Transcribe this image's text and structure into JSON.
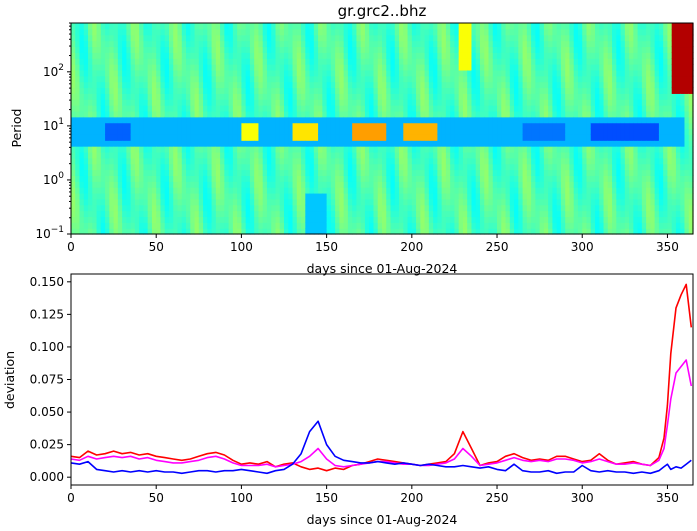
{
  "chart_data": [
    {
      "type": "heatmap",
      "title": "gr.grc2..bhz",
      "xlabel": "days since 01-Aug-2024",
      "ylabel": "Period",
      "xlim": [
        0,
        365
      ],
      "ylim": [
        0.1,
        800
      ],
      "yscale": "log",
      "xticks": [
        "0",
        "50",
        "100",
        "150",
        "200",
        "250",
        "300",
        "350"
      ],
      "yticks": [
        {
          "base": "10",
          "exp": "−1",
          "value": 0.1
        },
        {
          "base": "10",
          "exp": "0",
          "value": 1
        },
        {
          "base": "10",
          "exp": "1",
          "value": 10
        },
        {
          "base": "10",
          "exp": "2",
          "value": 100
        }
      ],
      "colormap": "jet",
      "background_level": 0.45,
      "features": [
        {
          "x": [
            0,
            360
          ],
          "period": [
            4,
            14
          ],
          "level": 0.3,
          "note": "blue band near 10 s period"
        },
        {
          "x": [
            20,
            35
          ],
          "period": [
            5,
            12
          ],
          "level": 0.22
        },
        {
          "x": [
            265,
            290
          ],
          "period": [
            5,
            12
          ],
          "level": 0.24
        },
        {
          "x": [
            305,
            345
          ],
          "period": [
            5,
            12
          ],
          "level": 0.2
        },
        {
          "x": [
            100,
            110
          ],
          "period": [
            6,
            12
          ],
          "level": 0.62
        },
        {
          "x": [
            130,
            145
          ],
          "period": [
            6,
            12
          ],
          "level": 0.65
        },
        {
          "x": [
            165,
            185
          ],
          "period": [
            6,
            12
          ],
          "level": 0.72
        },
        {
          "x": [
            195,
            215
          ],
          "period": [
            6,
            12
          ],
          "level": 0.7
        },
        {
          "x": [
            138,
            150
          ],
          "period": [
            0.1,
            0.6
          ],
          "level": 0.32
        },
        {
          "x": [
            228,
            236
          ],
          "period": [
            100,
            800
          ],
          "level": 0.62
        },
        {
          "x": [
            352,
            365
          ],
          "period": [
            40,
            800
          ],
          "level": 0.95,
          "note": "red region at end"
        }
      ]
    },
    {
      "type": "line",
      "xlabel": "days since 01-Aug-2024",
      "ylabel": "deviation",
      "xlim": [
        0,
        365
      ],
      "ylim": [
        -0.006,
        0.156
      ],
      "xticks": [
        "0",
        "50",
        "100",
        "150",
        "200",
        "250",
        "300",
        "350"
      ],
      "yticks": [
        "0.000",
        "0.025",
        "0.050",
        "0.075",
        "0.100",
        "0.125",
        "0.150"
      ],
      "x": [
        0,
        5,
        10,
        15,
        20,
        25,
        30,
        35,
        40,
        45,
        50,
        55,
        60,
        65,
        70,
        75,
        80,
        85,
        90,
        95,
        100,
        105,
        110,
        115,
        120,
        125,
        130,
        135,
        140,
        145,
        150,
        155,
        160,
        165,
        170,
        175,
        180,
        185,
        190,
        195,
        200,
        205,
        210,
        215,
        220,
        225,
        230,
        235,
        240,
        245,
        250,
        255,
        260,
        265,
        270,
        275,
        280,
        285,
        290,
        295,
        300,
        305,
        310,
        315,
        320,
        325,
        330,
        335,
        340,
        345,
        348,
        350,
        352,
        355,
        358,
        361,
        364
      ],
      "series": [
        {
          "color": "#ff0000",
          "values": [
            0.016,
            0.015,
            0.02,
            0.017,
            0.018,
            0.02,
            0.018,
            0.019,
            0.017,
            0.018,
            0.016,
            0.015,
            0.014,
            0.013,
            0.014,
            0.016,
            0.018,
            0.019,
            0.017,
            0.013,
            0.01,
            0.011,
            0.01,
            0.012,
            0.008,
            0.01,
            0.011,
            0.008,
            0.006,
            0.007,
            0.005,
            0.007,
            0.006,
            0.009,
            0.01,
            0.012,
            0.014,
            0.013,
            0.012,
            0.011,
            0.01,
            0.009,
            0.01,
            0.011,
            0.012,
            0.018,
            0.035,
            0.022,
            0.009,
            0.011,
            0.012,
            0.016,
            0.018,
            0.015,
            0.013,
            0.014,
            0.013,
            0.016,
            0.016,
            0.014,
            0.012,
            0.013,
            0.018,
            0.013,
            0.01,
            0.011,
            0.012,
            0.01,
            0.009,
            0.015,
            0.03,
            0.055,
            0.095,
            0.13,
            0.14,
            0.148,
            0.115
          ]
        },
        {
          "color": "#ff00ff",
          "values": [
            0.014,
            0.013,
            0.016,
            0.014,
            0.015,
            0.016,
            0.015,
            0.016,
            0.014,
            0.015,
            0.013,
            0.012,
            0.011,
            0.011,
            0.012,
            0.013,
            0.015,
            0.016,
            0.014,
            0.011,
            0.009,
            0.009,
            0.009,
            0.01,
            0.008,
            0.009,
            0.01,
            0.012,
            0.016,
            0.022,
            0.014,
            0.009,
            0.008,
            0.009,
            0.01,
            0.011,
            0.012,
            0.012,
            0.011,
            0.01,
            0.01,
            0.009,
            0.009,
            0.01,
            0.011,
            0.014,
            0.022,
            0.016,
            0.009,
            0.01,
            0.011,
            0.013,
            0.015,
            0.013,
            0.012,
            0.013,
            0.012,
            0.014,
            0.014,
            0.013,
            0.011,
            0.012,
            0.014,
            0.012,
            0.01,
            0.01,
            0.011,
            0.01,
            0.009,
            0.013,
            0.022,
            0.04,
            0.06,
            0.08,
            0.085,
            0.09,
            0.07
          ]
        },
        {
          "color": "#0000ff",
          "values": [
            0.011,
            0.01,
            0.012,
            0.006,
            0.005,
            0.004,
            0.005,
            0.004,
            0.005,
            0.004,
            0.005,
            0.004,
            0.004,
            0.003,
            0.004,
            0.005,
            0.005,
            0.004,
            0.005,
            0.005,
            0.006,
            0.005,
            0.004,
            0.003,
            0.005,
            0.006,
            0.01,
            0.018,
            0.035,
            0.043,
            0.025,
            0.016,
            0.013,
            0.012,
            0.011,
            0.011,
            0.012,
            0.011,
            0.01,
            0.011,
            0.01,
            0.009,
            0.01,
            0.009,
            0.008,
            0.008,
            0.009,
            0.008,
            0.007,
            0.008,
            0.006,
            0.005,
            0.01,
            0.005,
            0.004,
            0.004,
            0.005,
            0.003,
            0.004,
            0.004,
            0.009,
            0.005,
            0.004,
            0.005,
            0.004,
            0.004,
            0.003,
            0.004,
            0.003,
            0.005,
            0.008,
            0.01,
            0.006,
            0.008,
            0.007,
            0.01,
            0.013
          ]
        }
      ]
    }
  ]
}
